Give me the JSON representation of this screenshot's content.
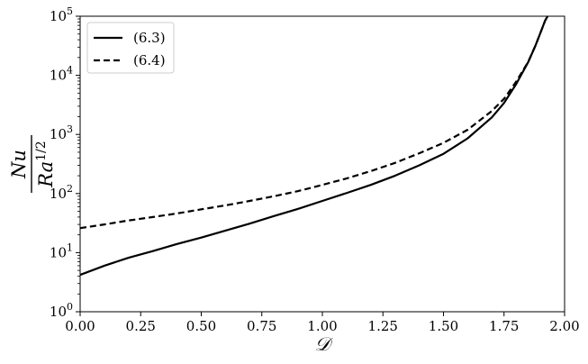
{
  "chart_data": {
    "type": "line",
    "title": "",
    "xlabel": "𝒟",
    "ylabel": {
      "numerator": "Nu",
      "denominator_base": "Ra",
      "denominator_exponent": "1/2"
    },
    "xlim": [
      0.0,
      2.0
    ],
    "ylim": [
      1,
      100000
    ],
    "yscale": "log",
    "grid": false,
    "legend_position": "top-left",
    "x_ticks": [
      "0.00",
      "0.25",
      "0.50",
      "0.75",
      "1.00",
      "1.25",
      "1.50",
      "1.75",
      "2.00"
    ],
    "x_tick_values": [
      0.0,
      0.25,
      0.5,
      0.75,
      1.0,
      1.25,
      1.5,
      1.75,
      2.0
    ],
    "y_tick_values": [
      1,
      10,
      100,
      1000,
      10000,
      100000
    ],
    "y_tick_exponents": [
      "0",
      "1",
      "2",
      "3",
      "4",
      "5"
    ],
    "series": [
      {
        "name": "(6.3)",
        "style": "solid",
        "color": "#000000",
        "x": [
          0.0,
          0.1,
          0.2,
          0.3,
          0.4,
          0.5,
          0.6,
          0.7,
          0.8,
          0.9,
          1.0,
          1.1,
          1.2,
          1.3,
          1.4,
          1.5,
          1.6,
          1.7,
          1.75,
          1.8,
          1.85,
          1.88,
          1.9,
          1.92,
          1.93
        ],
        "y": [
          4.2,
          6.0,
          8.2,
          10.6,
          14.0,
          18.0,
          23.6,
          31.0,
          41.5,
          55.0,
          75.0,
          102,
          140,
          200,
          300,
          470,
          860,
          1950,
          3400,
          7100,
          16800,
          32000,
          52000,
          85000,
          100000
        ]
      },
      {
        "name": "(6.4)",
        "style": "dashed",
        "color": "#000000",
        "x": [
          0.0,
          0.1,
          0.2,
          0.3,
          0.4,
          0.5,
          0.6,
          0.7,
          0.8,
          0.9,
          1.0,
          1.1,
          1.2,
          1.3,
          1.4,
          1.5,
          1.6,
          1.7,
          1.75,
          1.8,
          1.85,
          1.88,
          1.9,
          1.92,
          1.93
        ],
        "y": [
          26,
          30,
          35,
          40,
          46,
          54,
          63,
          75,
          90,
          110,
          140,
          180,
          240,
          330,
          480,
          720,
          1200,
          2500,
          4000,
          7800,
          17000,
          32000,
          52000,
          85000,
          100000
        ]
      }
    ]
  }
}
